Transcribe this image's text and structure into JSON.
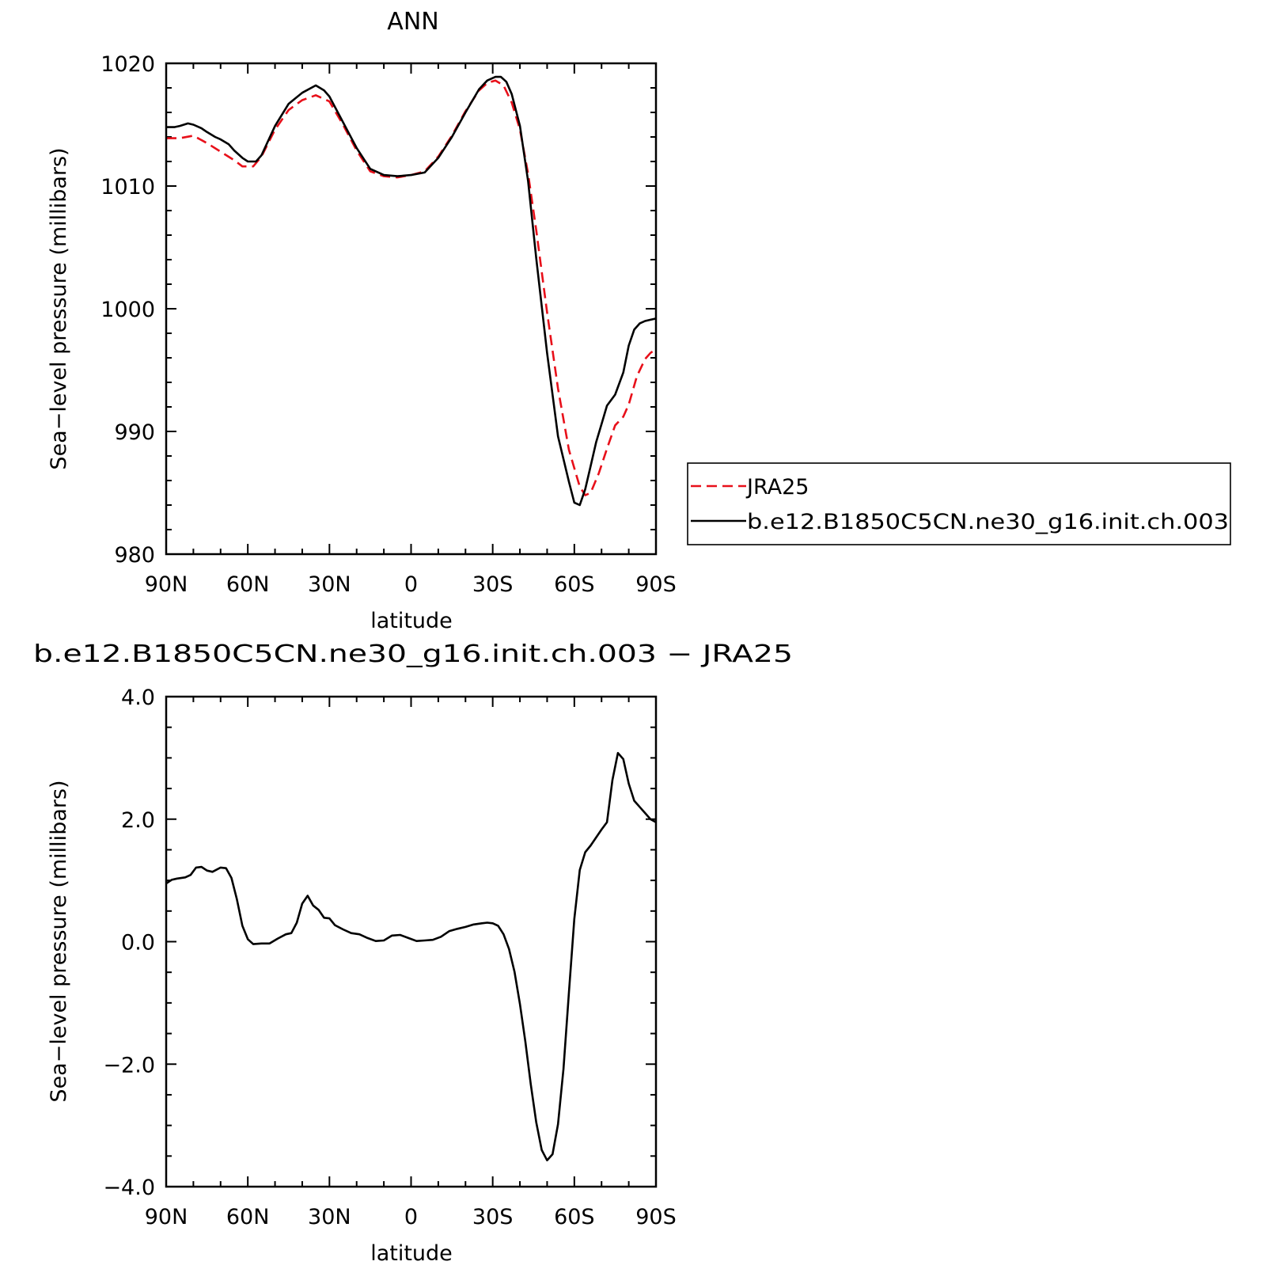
{
  "chart_data": [
    {
      "type": "line",
      "title": "ANN",
      "xlabel": "latitude",
      "ylabel": "Sea−level pressure (millibars)",
      "xlim": [
        90,
        -90
      ],
      "ylim": [
        980,
        1020
      ],
      "x_ticks": [
        {
          "value": 90,
          "label": "90N"
        },
        {
          "value": 60,
          "label": "60N"
        },
        {
          "value": 30,
          "label": "30N"
        },
        {
          "value": 0,
          "label": "0"
        },
        {
          "value": -30,
          "label": "30S"
        },
        {
          "value": -60,
          "label": "60S"
        },
        {
          "value": -90,
          "label": "90S"
        }
      ],
      "y_ticks": [
        {
          "value": 1020,
          "label": "1020"
        },
        {
          "value": 1010,
          "label": "1010"
        },
        {
          "value": 1000,
          "label": "1000"
        },
        {
          "value": 990,
          "label": "990"
        },
        {
          "value": 980,
          "label": "980"
        }
      ],
      "grid": false,
      "legend_position": "right",
      "series": [
        {
          "name": "JRA25",
          "color": "#e8101a",
          "dash": "dashed",
          "x": [
            90,
            85,
            80,
            75,
            70,
            65,
            62,
            58,
            55,
            50,
            45,
            40,
            35,
            30,
            25,
            20,
            15,
            10,
            5,
            0,
            -5,
            -10,
            -15,
            -20,
            -25,
            -28,
            -31,
            -34,
            -37,
            -40,
            -43,
            -46,
            -50,
            -54,
            -58,
            -62,
            -64,
            -66,
            -69,
            -72,
            -75,
            -78,
            -80,
            -83,
            -86,
            -88,
            -90
          ],
          "values": [
            1013.9,
            1013.9,
            1014.1,
            1013.5,
            1012.8,
            1012.1,
            1011.6,
            1011.6,
            1012.4,
            1014.6,
            1016.2,
            1017.0,
            1017.4,
            1016.9,
            1015.0,
            1012.9,
            1011.2,
            1010.8,
            1010.7,
            1010.9,
            1011.2,
            1012.4,
            1014.1,
            1016.1,
            1017.8,
            1018.4,
            1018.6,
            1018.2,
            1016.8,
            1014.6,
            1011.0,
            1006.4,
            999.7,
            993.5,
            988.5,
            985.5,
            984.8,
            985.0,
            986.6,
            988.6,
            990.5,
            991.2,
            992.2,
            994.5,
            995.9,
            996.4,
            996.7
          ]
        },
        {
          "name": "b.e12.B1850C5CN.ne30_g16.init.ch.003",
          "color": "#000000",
          "dash": "solid",
          "x": [
            90,
            87,
            85,
            82,
            80,
            77,
            75,
            72,
            70,
            67,
            65,
            62,
            60,
            57,
            55,
            50,
            45,
            40,
            35,
            32,
            30,
            25,
            20,
            15,
            10,
            5,
            0,
            -5,
            -10,
            -15,
            -20,
            -25,
            -28,
            -31,
            -33,
            -35,
            -37,
            -40,
            -43,
            -46,
            -50,
            -54,
            -58,
            -60,
            -62,
            -64,
            -66,
            -68,
            -70,
            -72,
            -75,
            -78,
            -80,
            -82,
            -84,
            -86,
            -88,
            -90
          ],
          "values": [
            1014.8,
            1014.8,
            1014.9,
            1015.1,
            1015.0,
            1014.7,
            1014.4,
            1014.0,
            1013.8,
            1013.4,
            1012.9,
            1012.3,
            1012.0,
            1012.0,
            1012.5,
            1014.9,
            1016.7,
            1017.6,
            1018.2,
            1017.8,
            1017.3,
            1015.2,
            1013.1,
            1011.4,
            1010.9,
            1010.8,
            1010.9,
            1011.1,
            1012.3,
            1014.0,
            1016.0,
            1017.9,
            1018.6,
            1018.9,
            1018.9,
            1018.5,
            1017.5,
            1014.9,
            1010.4,
            1004.1,
            996.4,
            989.6,
            985.9,
            984.2,
            984.0,
            985.3,
            987.2,
            989.1,
            990.6,
            992.1,
            993.0,
            994.8,
            997.0,
            998.3,
            998.8,
            999.0,
            999.1,
            999.2
          ]
        }
      ]
    },
    {
      "type": "line",
      "title": "b.e12.B1850C5CN.ne30_g16.init.ch.003 − JRA25",
      "xlabel": "latitude",
      "ylabel": "Sea−level pressure (millibars)",
      "xlim": [
        90,
        -90
      ],
      "ylim": [
        -4.0,
        4.0
      ],
      "x_ticks": [
        {
          "value": 90,
          "label": "90N"
        },
        {
          "value": 60,
          "label": "60N"
        },
        {
          "value": 30,
          "label": "30N"
        },
        {
          "value": 0,
          "label": "0"
        },
        {
          "value": -30,
          "label": "30S"
        },
        {
          "value": -60,
          "label": "60S"
        },
        {
          "value": -90,
          "label": "90S"
        }
      ],
      "y_ticks": [
        {
          "value": 4.0,
          "label": "4.0"
        },
        {
          "value": 2.0,
          "label": "2.0"
        },
        {
          "value": 0.0,
          "label": "0.0"
        },
        {
          "value": -2.0,
          "label": "−2.0"
        },
        {
          "value": -4.0,
          "label": "−4.0"
        }
      ],
      "grid": false,
      "series": [
        {
          "color": "#000000",
          "dash": "solid",
          "x": [
            90,
            88,
            86,
            83,
            81,
            79,
            77,
            75,
            73,
            70,
            68,
            66,
            64,
            62,
            60,
            58,
            55,
            52,
            49,
            46,
            44,
            42,
            40,
            38,
            36,
            34,
            32,
            30,
            28,
            25,
            22,
            19,
            16,
            13,
            10,
            7,
            4,
            1,
            -2,
            -5,
            -8,
            -11,
            -14,
            -17,
            -20,
            -23,
            -26,
            -28,
            -30,
            -32,
            -34,
            -36,
            -38,
            -40,
            -42,
            -44,
            -46,
            -48,
            -50,
            -52,
            -54,
            -56,
            -58,
            -60,
            -62,
            -64,
            -66,
            -68,
            -70,
            -72,
            -74,
            -76,
            -78,
            -80,
            -82,
            -84,
            -86,
            -88,
            -90
          ],
          "values": [
            0.95,
            1.01,
            1.03,
            1.05,
            1.09,
            1.21,
            1.22,
            1.16,
            1.14,
            1.21,
            1.2,
            1.04,
            0.69,
            0.26,
            0.04,
            -0.04,
            -0.03,
            -0.03,
            0.05,
            0.12,
            0.14,
            0.31,
            0.62,
            0.75,
            0.59,
            0.52,
            0.39,
            0.38,
            0.27,
            0.2,
            0.14,
            0.12,
            0.06,
            0.01,
            0.02,
            0.1,
            0.11,
            0.06,
            0.01,
            0.02,
            0.03,
            0.08,
            0.17,
            0.21,
            0.24,
            0.28,
            0.3,
            0.31,
            0.3,
            0.26,
            0.12,
            -0.12,
            -0.49,
            -1.02,
            -1.63,
            -2.33,
            -2.95,
            -3.4,
            -3.57,
            -3.47,
            -2.98,
            -2.08,
            -0.83,
            0.37,
            1.17,
            1.46,
            1.57,
            1.7,
            1.83,
            1.95,
            2.64,
            3.08,
            2.98,
            2.58,
            2.3,
            2.2,
            2.1,
            2.0,
            1.95
          ]
        }
      ]
    }
  ]
}
